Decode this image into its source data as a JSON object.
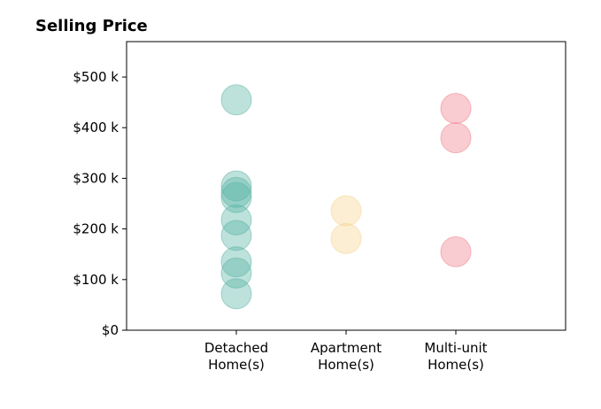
{
  "chart_data": {
    "type": "scatter",
    "title": "Selling Price",
    "xlabel": "",
    "ylabel": "",
    "categories": [
      [
        "Detached",
        "Home(s)"
      ],
      [
        "Apartment",
        "Home(s)"
      ],
      [
        "Multi-unit",
        "Home(s)"
      ]
    ],
    "xlim": [
      -1,
      3
    ],
    "ylim": [
      0,
      570000
    ],
    "yticks": [
      {
        "value": 0,
        "label": "$0"
      },
      {
        "value": 100000,
        "label": "$100 k"
      },
      {
        "value": 200000,
        "label": "$200 k"
      },
      {
        "value": 300000,
        "label": "$300 k"
      },
      {
        "value": 400000,
        "label": "$400 k"
      },
      {
        "value": 500000,
        "label": "$500 k"
      }
    ],
    "grid": false,
    "series": [
      {
        "color": "#5ab4a6",
        "category_index": 0,
        "values": [
          455000,
          285000,
          272000,
          262000,
          218000,
          187000,
          135000,
          113000,
          72000
        ]
      },
      {
        "color": "#f5d48f",
        "category_index": 1,
        "values": [
          236000,
          181000
        ]
      },
      {
        "color": "#ee7f8a",
        "category_index": 2,
        "values": [
          438000,
          380000,
          155000
        ]
      }
    ]
  }
}
